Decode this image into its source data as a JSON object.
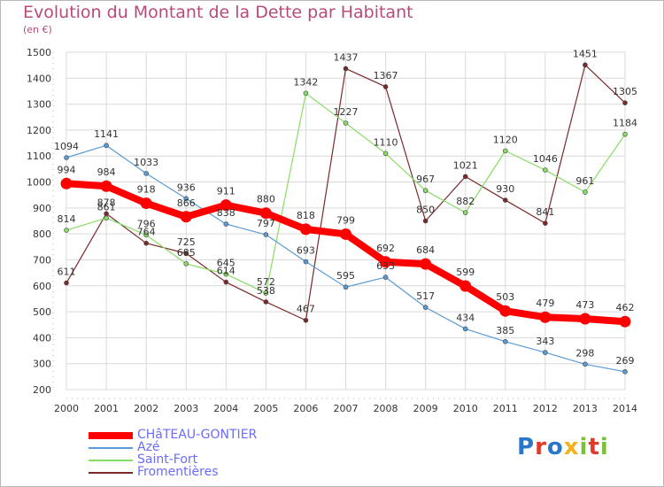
{
  "title": "Evolution du Montant de la Dette par Habitant",
  "subtitle": "(en €)",
  "logo": {
    "text": "Proxiti",
    "letters": [
      "P",
      "r",
      "o",
      "x",
      "i",
      "t",
      "i"
    ],
    "colors": [
      "#2a76c8",
      "#e2382a",
      "#2a76c8",
      "#f2b21b",
      "#7cbf3a",
      "#e2382a",
      "#7cbf3a"
    ]
  },
  "chart_data": {
    "type": "line",
    "title": "Evolution du Montant de la Dette par Habitant",
    "ylabel": "(en €)",
    "x": [
      "2000",
      "2001",
      "2002",
      "2003",
      "2004",
      "2005",
      "2006",
      "2007",
      "2008",
      "2009",
      "2010",
      "2011",
      "2012",
      "2013",
      "2014"
    ],
    "ylim": [
      200,
      1500
    ],
    "yticks": [
      200,
      300,
      400,
      500,
      600,
      700,
      800,
      900,
      1000,
      1100,
      1200,
      1300,
      1400,
      1500
    ],
    "grid": true,
    "legend_position": "bottom-left",
    "series": [
      {
        "name": "CHâTEAU-GONTIER",
        "color": "#ff0000",
        "values": [
          994,
          984,
          918,
          866,
          911,
          880,
          818,
          799,
          692,
          684,
          599,
          503,
          479,
          473,
          462
        ]
      },
      {
        "name": "Azé",
        "color": "#5b9bd5",
        "values": [
          1094,
          1141,
          1033,
          936,
          838,
          797,
          693,
          595,
          633,
          517,
          434,
          385,
          343,
          298,
          269
        ]
      },
      {
        "name": "Saint-Fort",
        "color": "#88dd66",
        "values": [
          814,
          861,
          796,
          685,
          645,
          572,
          1342,
          1227,
          1110,
          967,
          882,
          1120,
          1046,
          961,
          1184
        ]
      },
      {
        "name": "Fromentières",
        "color": "#7a2a2a",
        "values": [
          611,
          878,
          764,
          725,
          614,
          538,
          467,
          1437,
          1367,
          850,
          1021,
          930,
          841,
          1451,
          1305
        ]
      }
    ]
  }
}
